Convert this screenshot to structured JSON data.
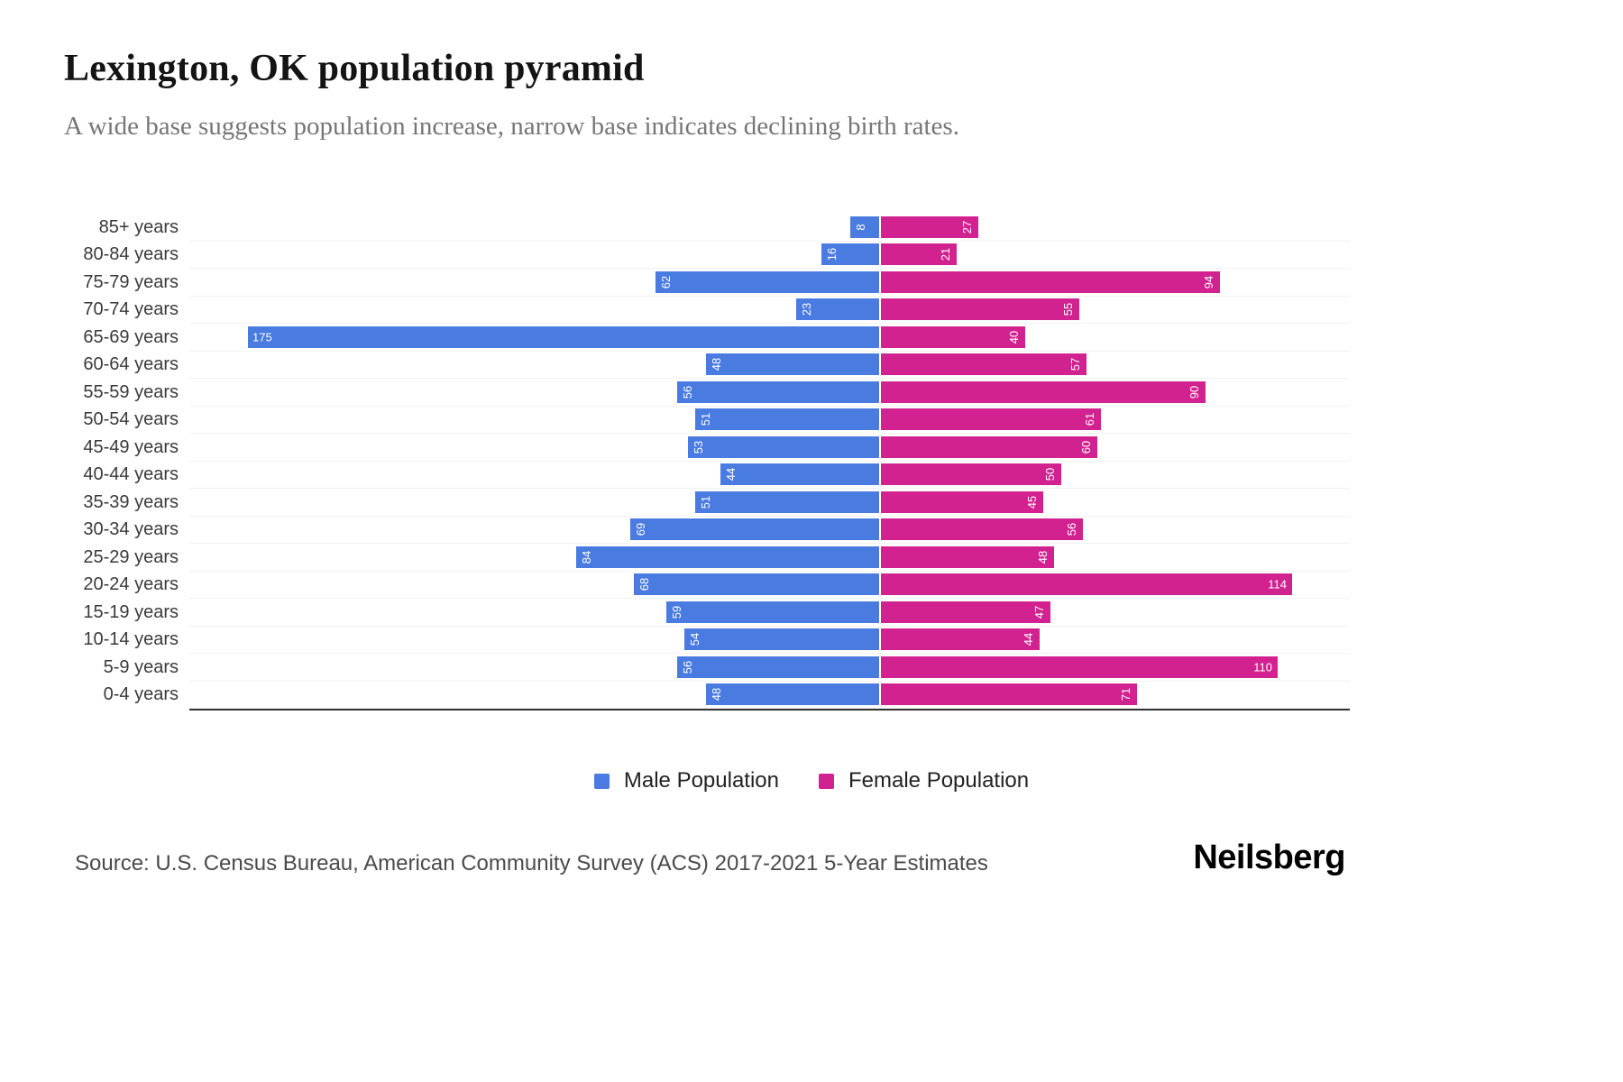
{
  "header": {
    "title": "Lexington, OK population pyramid",
    "subtitle": "A wide base suggests population increase, narrow base indicates declining birth rates."
  },
  "chart_data": {
    "type": "bar",
    "variant": "population-pyramid",
    "title": "Lexington, OK population pyramid",
    "subtitle": "A wide base suggests population increase, narrow base indicates declining birth rates.",
    "categories": [
      "85+ years",
      "80-84 years",
      "75-79 years",
      "70-74 years",
      "65-69 years",
      "60-64 years",
      "55-59 years",
      "50-54 years",
      "45-49 years",
      "40-44 years",
      "35-39 years",
      "30-34 years",
      "25-29 years",
      "20-24 years",
      "15-19 years",
      "10-14 years",
      "5-9 years",
      "0-4 years"
    ],
    "series": [
      {
        "name": "Male Population",
        "color": "#4a7be0",
        "direction": "left",
        "values": [
          8,
          16,
          62,
          23,
          175,
          48,
          56,
          51,
          53,
          44,
          51,
          69,
          84,
          68,
          59,
          54,
          56,
          48
        ]
      },
      {
        "name": "Female Population",
        "color": "#d2228f",
        "direction": "right",
        "values": [
          27,
          21,
          94,
          55,
          40,
          57,
          90,
          61,
          60,
          50,
          45,
          56,
          48,
          114,
          47,
          44,
          110,
          71
        ]
      }
    ],
    "value_labels": "inside end, white, rotated 90deg for 2-digit values",
    "legend_position": "bottom",
    "grid": "horizontal row separators, light gray",
    "axis": "bottom baseline, dark"
  },
  "legend": {
    "male_label": "Male Population",
    "female_label": "Female Population"
  },
  "footer": {
    "source": "Source: U.S. Census Bureau, American Community Survey (ACS) 2017-2021 5-Year Estimates",
    "logo": "Neilsberg"
  },
  "colors": {
    "male": "#4a7be0",
    "female": "#d2228f",
    "axis": "#333333",
    "gridline": "#f1f1f1",
    "title_text": "#141414",
    "subtitle_text": "#767676"
  }
}
